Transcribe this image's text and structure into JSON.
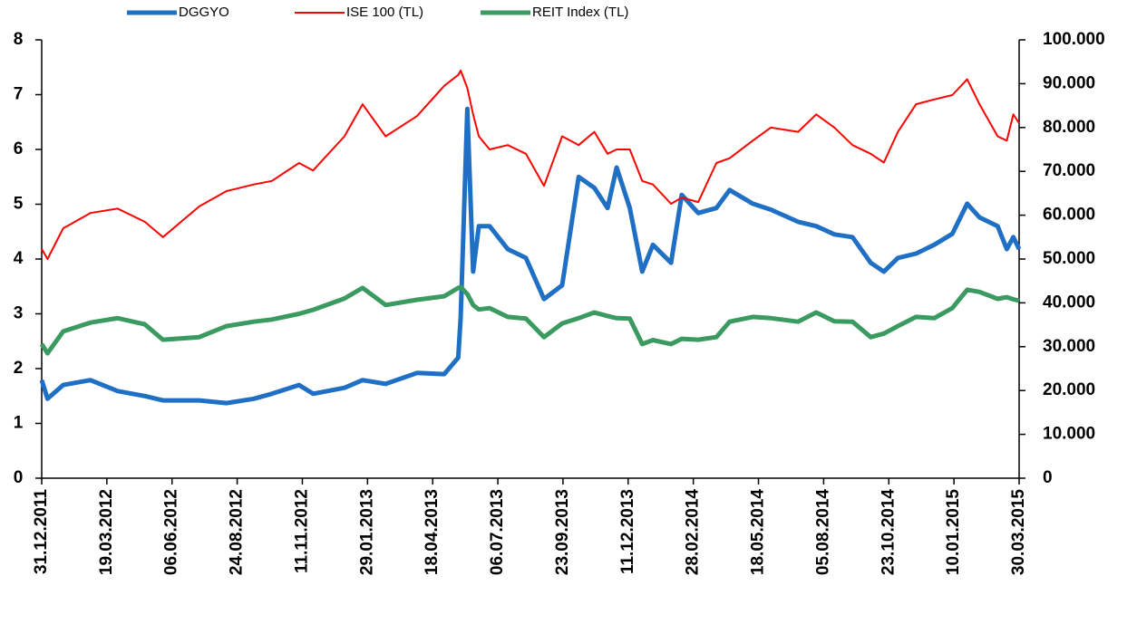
{
  "chart_data": {
    "type": "line",
    "x": [
      "31.12.2011",
      "07.01.2012",
      "26.01.2012",
      "28.02.2012",
      "01.04.2012",
      "04.05.2012",
      "26.05.2012",
      "09.07.2012",
      "11.08.2012",
      "13.09.2012",
      "05.10.2012",
      "07.11.2012",
      "24.11.2012",
      "01.01.2013",
      "23.01.2013",
      "20.02.2013",
      "30.03.2013",
      "02.05.2013",
      "19.05.2013",
      "22.05.2013",
      "30.05.2013",
      "06.06.2013",
      "13.06.2013",
      "26.06.2013",
      "18.07.2013",
      "09.08.2013",
      "31.08.2013",
      "22.09.2013",
      "12.10.2013",
      "31.10.2013",
      "16.11.2013",
      "27.11.2013",
      "13.12.2013",
      "28.12.2013",
      "10.01.2014",
      "01.02.2014",
      "14.02.2014",
      "06.03.2014",
      "28.03.2014",
      "13.04.2014",
      "11.05.2014",
      "02.06.2014",
      "05.07.2014",
      "27.07.2014",
      "18.08.2014",
      "09.09.2014",
      "01.10.2014",
      "17.10.2014",
      "03.11.2014",
      "25.11.2014",
      "17.12.2014",
      "08.01.2015",
      "26.01.2015",
      "10.02.2015",
      "04.03.2015",
      "15.03.2015",
      "23.03.2015",
      "30.03.2015"
    ],
    "xlim": [
      "31.12.2011",
      "30.03.2015"
    ],
    "xticks": [
      "31.12.2011",
      "19.03.2012",
      "06.06.2012",
      "24.08.2012",
      "11.11.2012",
      "29.01.2013",
      "18.04.2013",
      "06.07.2013",
      "23.09.2013",
      "11.12.2013",
      "28.02.2014",
      "18.05.2014",
      "05.08.2014",
      "23.10.2014",
      "10.01.2015",
      "30.03.2015"
    ],
    "ylim": [
      0,
      8
    ],
    "yticks": [
      0,
      1,
      2,
      3,
      4,
      5,
      6,
      7,
      8
    ],
    "y2lim": [
      0,
      100000
    ],
    "y2ticks": [
      0,
      {
        "value": 10000,
        "label": "10.000"
      },
      {
        "value": 20000,
        "label": "20.000"
      },
      {
        "value": 30000,
        "label": "30.000"
      },
      {
        "value": 40000,
        "label": "40.000"
      },
      {
        "value": 50000,
        "label": "50.000"
      },
      {
        "value": 60000,
        "label": "60.000"
      },
      {
        "value": 70000,
        "label": "70.000"
      },
      {
        "value": 80000,
        "label": "80.000"
      },
      {
        "value": 90000,
        "label": "90.000"
      },
      {
        "value": 100000,
        "label": "100.000"
      }
    ],
    "legend": "top",
    "series": [
      {
        "name": "DGGYO",
        "color": "#1f6fc5",
        "width": 5,
        "values": [
          1.79,
          1.45,
          1.7,
          1.79,
          1.59,
          1.5,
          1.42,
          1.42,
          1.37,
          1.45,
          1.54,
          1.7,
          1.54,
          1.65,
          1.79,
          1.72,
          1.92,
          1.9,
          2.2,
          2.94,
          6.74,
          3.77,
          4.6,
          4.6,
          4.18,
          4.02,
          3.27,
          3.52,
          5.5,
          5.3,
          4.93,
          5.67,
          4.93,
          3.77,
          4.26,
          3.93,
          5.17,
          4.84,
          4.93,
          5.26,
          5.01,
          4.9,
          4.68,
          4.6,
          4.45,
          4.4,
          3.93,
          3.77,
          4.02,
          4.1,
          4.26,
          4.46,
          5.01,
          4.76,
          4.6,
          4.18,
          4.4,
          4.18
        ]
      },
      {
        "name": "ISE 100 (TL)",
        "color": "#ff0000",
        "width": 2,
        "axis": "y2",
        "values": [
          52300,
          50000,
          57000,
          60500,
          61500,
          58500,
          55000,
          62000,
          65500,
          67000,
          67800,
          71900,
          70200,
          78000,
          85300,
          78000,
          82600,
          89500,
          92000,
          93000,
          89000,
          83000,
          78000,
          75000,
          76000,
          74000,
          66700,
          78000,
          76000,
          79000,
          74000,
          75000,
          75000,
          67800,
          67000,
          62600,
          64000,
          63000,
          71900,
          73000,
          77000,
          80000,
          79000,
          83000,
          80000,
          76000,
          74000,
          72000,
          79000,
          85300,
          86400,
          87400,
          91000,
          85300,
          78000,
          77000,
          83000,
          81000
        ]
      },
      {
        "name": "REIT Index (TL)",
        "color": "#3a9a5f",
        "width": 5,
        "axis": "y2",
        "values": [
          30600,
          28500,
          33500,
          35500,
          36500,
          35100,
          31600,
          32200,
          34700,
          35700,
          36200,
          37500,
          38400,
          41000,
          43400,
          39500,
          40700,
          41500,
          43400,
          43600,
          42000,
          39500,
          38500,
          38800,
          36800,
          36400,
          32200,
          35300,
          36500,
          37800,
          37000,
          36500,
          36400,
          30600,
          31500,
          30600,
          31800,
          31600,
          32200,
          35700,
          36800,
          36500,
          35700,
          37800,
          35800,
          35700,
          32200,
          33000,
          34700,
          36800,
          36500,
          38800,
          43000,
          42500,
          40900,
          41300,
          40800,
          40500
        ]
      }
    ]
  }
}
